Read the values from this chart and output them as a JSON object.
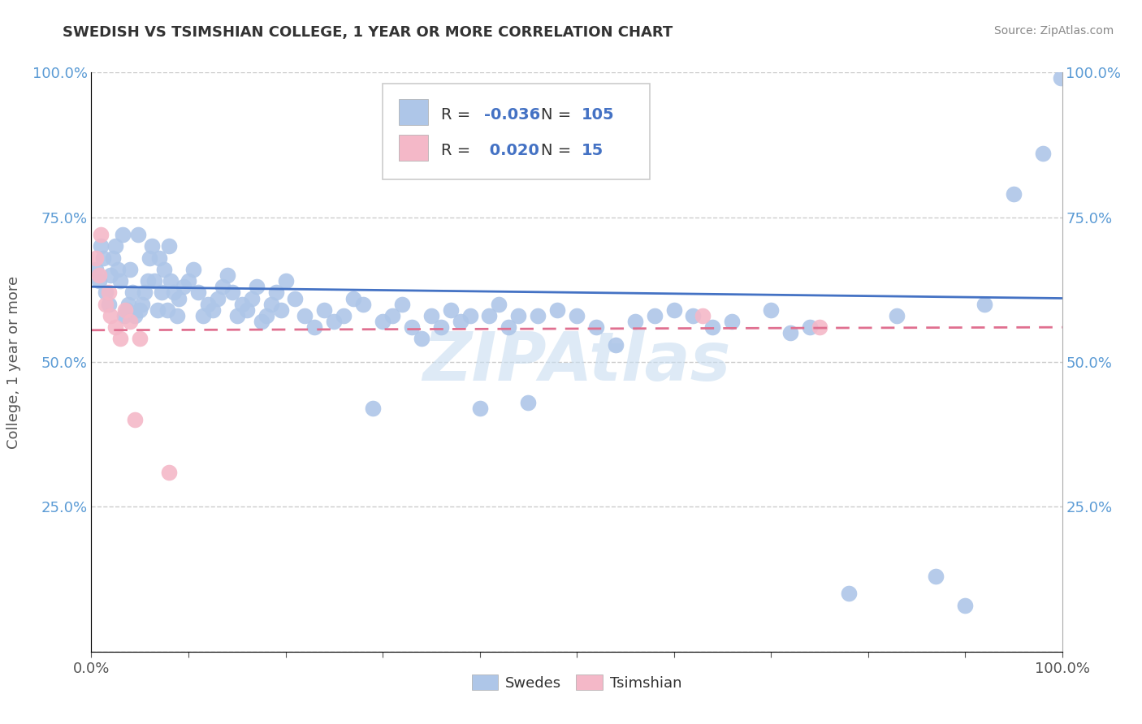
{
  "title": "SWEDISH VS TSIMSHIAN COLLEGE, 1 YEAR OR MORE CORRELATION CHART",
  "source": "Source: ZipAtlas.com",
  "ylabel": "College, 1 year or more",
  "xlim": [
    0,
    1
  ],
  "ylim": [
    0,
    1
  ],
  "swedes_R": -0.036,
  "swedes_N": 105,
  "tsimshian_R": 0.02,
  "tsimshian_N": 15,
  "swedes_color": "#aec6e8",
  "swedes_line_color": "#4472c4",
  "tsimshian_color": "#f4b8c8",
  "tsimshian_line_color": "#e07090",
  "label_color": "#5b9bd5",
  "r_value_color": "#4472c4",
  "n_value_color": "#4472c4",
  "watermark_color": "#c8ddf0",
  "grid_color": "#cccccc",
  "spine_color": "#aaaaaa",
  "title_color": "#333333",
  "source_color": "#888888",
  "ylabel_color": "#555555",
  "tick_color_x": "#555555",
  "tick_color_y": "#5b9bd5",
  "sw_line_y0": 0.63,
  "sw_line_y1": 0.61,
  "ts_line_y0": 0.555,
  "ts_line_y1": 0.56,
  "swedes_x": [
    0.005,
    0.008,
    0.01,
    0.012,
    0.015,
    0.018,
    0.02,
    0.022,
    0.025,
    0.027,
    0.03,
    0.032,
    0.034,
    0.036,
    0.038,
    0.04,
    0.042,
    0.045,
    0.048,
    0.05,
    0.052,
    0.055,
    0.058,
    0.06,
    0.062,
    0.065,
    0.068,
    0.07,
    0.072,
    0.075,
    0.078,
    0.08,
    0.082,
    0.085,
    0.088,
    0.09,
    0.095,
    0.1,
    0.105,
    0.11,
    0.115,
    0.12,
    0.125,
    0.13,
    0.135,
    0.14,
    0.145,
    0.15,
    0.155,
    0.16,
    0.165,
    0.17,
    0.175,
    0.18,
    0.185,
    0.19,
    0.195,
    0.2,
    0.21,
    0.22,
    0.23,
    0.24,
    0.25,
    0.26,
    0.27,
    0.28,
    0.29,
    0.3,
    0.31,
    0.32,
    0.33,
    0.34,
    0.35,
    0.36,
    0.37,
    0.38,
    0.39,
    0.4,
    0.41,
    0.42,
    0.43,
    0.44,
    0.45,
    0.46,
    0.48,
    0.5,
    0.52,
    0.54,
    0.56,
    0.58,
    0.6,
    0.62,
    0.64,
    0.66,
    0.7,
    0.72,
    0.74,
    0.78,
    0.83,
    0.87,
    0.9,
    0.92,
    0.95,
    0.98,
    0.999
  ],
  "swedes_y": [
    0.66,
    0.64,
    0.7,
    0.68,
    0.62,
    0.6,
    0.65,
    0.68,
    0.7,
    0.66,
    0.64,
    0.72,
    0.58,
    0.59,
    0.6,
    0.66,
    0.62,
    0.58,
    0.72,
    0.59,
    0.6,
    0.62,
    0.64,
    0.68,
    0.7,
    0.64,
    0.59,
    0.68,
    0.62,
    0.66,
    0.59,
    0.7,
    0.64,
    0.62,
    0.58,
    0.61,
    0.63,
    0.64,
    0.66,
    0.62,
    0.58,
    0.6,
    0.59,
    0.61,
    0.63,
    0.65,
    0.62,
    0.58,
    0.6,
    0.59,
    0.61,
    0.63,
    0.57,
    0.58,
    0.6,
    0.62,
    0.59,
    0.64,
    0.61,
    0.58,
    0.56,
    0.59,
    0.57,
    0.58,
    0.61,
    0.6,
    0.42,
    0.57,
    0.58,
    0.6,
    0.56,
    0.54,
    0.58,
    0.56,
    0.59,
    0.57,
    0.58,
    0.42,
    0.58,
    0.6,
    0.56,
    0.58,
    0.43,
    0.58,
    0.59,
    0.58,
    0.56,
    0.53,
    0.57,
    0.58,
    0.59,
    0.58,
    0.56,
    0.57,
    0.59,
    0.55,
    0.56,
    0.1,
    0.58,
    0.13,
    0.08,
    0.6,
    0.79,
    0.86,
    0.99
  ],
  "tsimshian_x": [
    0.005,
    0.008,
    0.01,
    0.015,
    0.018,
    0.02,
    0.025,
    0.03,
    0.035,
    0.04,
    0.045,
    0.05,
    0.08,
    0.63,
    0.75
  ],
  "tsimshian_y": [
    0.68,
    0.65,
    0.72,
    0.6,
    0.62,
    0.58,
    0.56,
    0.54,
    0.59,
    0.57,
    0.4,
    0.54,
    0.31,
    0.58,
    0.56
  ]
}
